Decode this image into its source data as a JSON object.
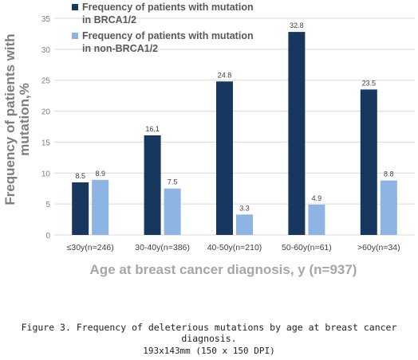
{
  "caption": "Figure 3. Frequency of deleterious mutations by age at breast cancer diagnosis.",
  "dimensions_note": "193x143mm (150 x 150 DPI)",
  "chart_data": {
    "type": "bar",
    "title": "",
    "xlabel": "Age at breast cancer diagnosis, y (n=937)",
    "ylabel_lines": [
      "Frequency of patients with",
      "mutation,%"
    ],
    "ylim": [
      0,
      35
    ],
    "yticks": [
      0,
      5,
      10,
      15,
      20,
      25,
      30,
      35
    ],
    "grid": true,
    "legend_position": "top",
    "categories": [
      "≤30y(n=246)",
      "30-40y(n=386)",
      "40-50y(n=210)",
      "50-60y(n=61)",
      ">60y(n=34)"
    ],
    "series": [
      {
        "name": "Frequency of patients with mutation in BRCA1/2",
        "legend_lines": [
          "Frequency of patients with mutation",
          "in BRCA1/2"
        ],
        "color": "#17375e",
        "values": [
          8.5,
          16.1,
          24.8,
          32.8,
          23.5
        ],
        "labels": [
          "8.5",
          "16.1",
          "24.8",
          "32.8",
          "23.5"
        ]
      },
      {
        "name": "Frequency of patients with mutation in non-BRCA1/2",
        "legend_lines": [
          "Frequency of patients with mutation",
          "in non-BRCA1/2"
        ],
        "color": "#8db4e2",
        "values": [
          8.9,
          7.5,
          3.3,
          4.9,
          8.8
        ],
        "labels": [
          "8.9",
          "7.5",
          "3.3",
          "4.9",
          "8.8"
        ]
      }
    ],
    "colors": {
      "axis_text": "#7f7f7f",
      "label_text": "#404040",
      "grid": "#d9d9d9"
    }
  }
}
